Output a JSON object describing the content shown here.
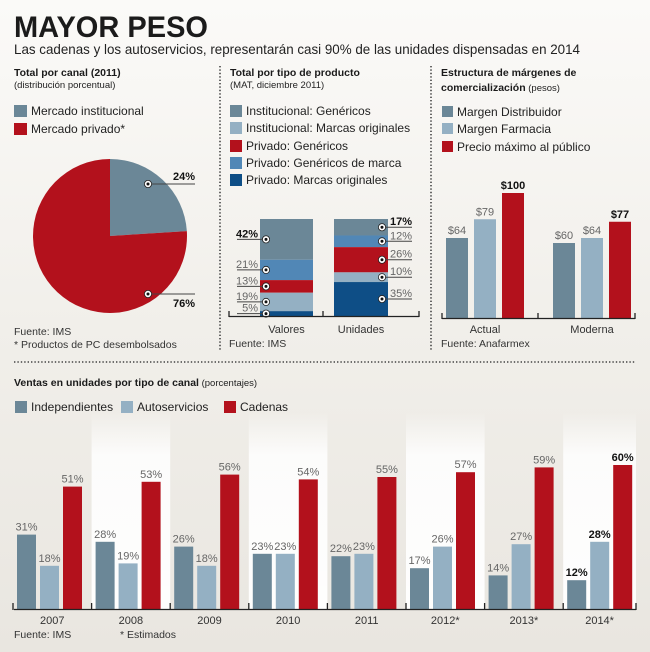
{
  "header": {
    "title": "MAYOR PESO",
    "subtitle": "Las cadenas y los autoservicios, representarán casi 90% de las unidades dispensadas en 2014"
  },
  "panels": {
    "canal": {
      "title": "Total por canal (2011)",
      "subtitle": "(distribución porcentual)",
      "legend": [
        {
          "label": "Mercado institucional",
          "color": "#6b8797"
        },
        {
          "label": "Mercado privado*",
          "color": "#b3111c"
        }
      ],
      "source": "Fuente: IMS",
      "note": "* Productos de PC desembolsados"
    },
    "producto": {
      "title": "Total por tipo de producto",
      "subtitle": "(MAT, diciembre 2011)",
      "legend": [
        {
          "label": "Institucional: Genéricos",
          "color": "#6b8797"
        },
        {
          "label": "Institucional: Marcas originales",
          "color": "#94b0c3"
        },
        {
          "label": "Privado: Genéricos",
          "color": "#b3111c"
        },
        {
          "label": "Privado: Genéricos de marca",
          "color": "#5187b6"
        },
        {
          "label": "Privado: Marcas originales",
          "color": "#0e4e86"
        }
      ],
      "source": "Fuente: IMS"
    },
    "margenes": {
      "title_line1": "Estructura de márgenes de",
      "title_line2": "comercialización",
      "unit": " (pesos)",
      "legend": [
        {
          "label": "Margen Distribuidor",
          "color": "#6b8797"
        },
        {
          "label": "Margen Farmacia",
          "color": "#94b0c3"
        },
        {
          "label": "Precio máximo al público",
          "color": "#b3111c"
        }
      ],
      "source": "Fuente: Anafarmex"
    },
    "ventas": {
      "title": "Ventas en unidades por tipo de canal",
      "unit": " (porcentajes)",
      "legend": [
        {
          "label": "Independientes",
          "color": "#6b8797"
        },
        {
          "label": "Autoservicios",
          "color": "#94b0c3"
        },
        {
          "label": "Cadenas",
          "color": "#b3111c"
        }
      ],
      "source": "Fuente: IMS",
      "note": "* Estimados"
    }
  },
  "chart_data": [
    {
      "type": "pie",
      "title": "Total por canal (2011)",
      "subtitle": "(distribución porcentual)",
      "categories": [
        "Mercado institucional",
        "Mercado privado*"
      ],
      "values": [
        24,
        76
      ],
      "unit": "%",
      "colors": [
        "#6b8797",
        "#b3111c"
      ],
      "legend": "top"
    },
    {
      "type": "bar",
      "stacked": true,
      "title": "Total por tipo de producto",
      "subtitle": "(MAT, diciembre 2011)",
      "categories": [
        "Valores",
        "Unidades"
      ],
      "series": [
        {
          "name": "Institucional: Genéricos",
          "values": [
            42,
            17
          ],
          "color": "#6b8797"
        },
        {
          "name": "Institucional: Marcas originales",
          "values": [
            19,
            10
          ],
          "color": "#94b0c3"
        },
        {
          "name": "Privado: Genéricos",
          "values": [
            13,
            26
          ],
          "color": "#b3111c"
        },
        {
          "name": "Privado: Genéricos de marca",
          "values": [
            21,
            12
          ],
          "color": "#5187b6"
        },
        {
          "name": "Privado: Marcas originales",
          "values": [
            5,
            35
          ],
          "color": "#0e4e86"
        }
      ],
      "unit": "%",
      "ylim": [
        0,
        100
      ],
      "legend": "top"
    },
    {
      "type": "bar",
      "title": "Estructura de márgenes de comercialización",
      "subtitle": "(pesos)",
      "categories": [
        "Actual",
        "Moderna"
      ],
      "series": [
        {
          "name": "Margen Distribuidor",
          "values": [
            64,
            60
          ],
          "color": "#6b8797"
        },
        {
          "name": "Margen Farmacia",
          "values": [
            79,
            64
          ],
          "color": "#94b0c3"
        },
        {
          "name": "Precio máximo al público",
          "values": [
            100,
            77
          ],
          "color": "#b3111c"
        }
      ],
      "unit_prefix": "$",
      "ylim": [
        0,
        100
      ],
      "legend": "top"
    },
    {
      "type": "bar",
      "title": "Ventas en unidades por tipo de canal",
      "subtitle": "(porcentajes)",
      "categories": [
        "2007",
        "2008",
        "2009",
        "2010",
        "2011",
        "2012*",
        "2013*",
        "2014*"
      ],
      "series": [
        {
          "name": "Independientes",
          "values": [
            31,
            28,
            26,
            23,
            22,
            17,
            14,
            12
          ],
          "color": "#6b8797"
        },
        {
          "name": "Autoservicios",
          "values": [
            18,
            19,
            18,
            23,
            23,
            26,
            27,
            28
          ],
          "color": "#94b0c3"
        },
        {
          "name": "Cadenas",
          "values": [
            51,
            53,
            56,
            54,
            55,
            57,
            59,
            60
          ],
          "color": "#b3111c"
        }
      ],
      "unit": "%",
      "ylim": [
        0,
        60
      ],
      "legend": "top"
    }
  ]
}
